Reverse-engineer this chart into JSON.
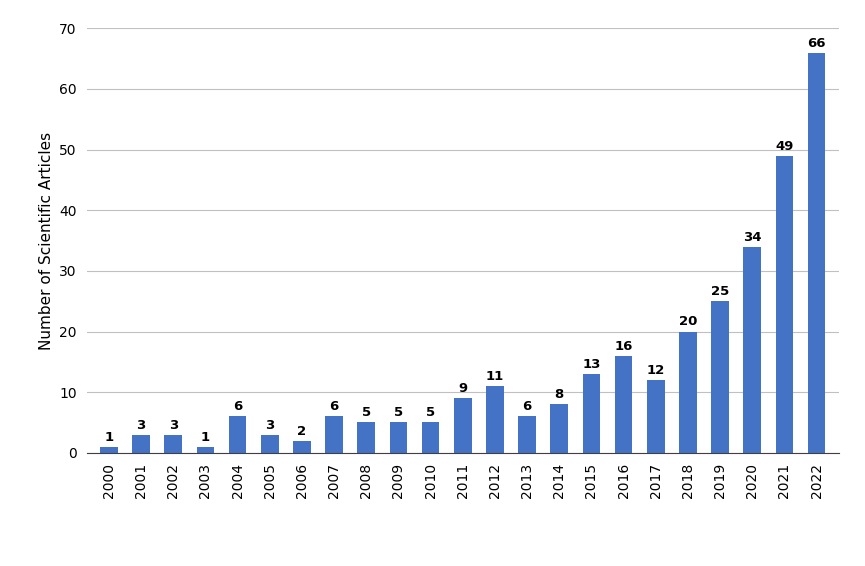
{
  "years": [
    "2000",
    "2001",
    "2002",
    "2003",
    "2004",
    "2005",
    "2006",
    "2007",
    "2008",
    "2009",
    "2010",
    "2011",
    "2012",
    "2013",
    "2014",
    "2015",
    "2016",
    "2017",
    "2018",
    "2019",
    "2020",
    "2021",
    "2022"
  ],
  "values": [
    1,
    3,
    3,
    1,
    6,
    3,
    2,
    6,
    5,
    5,
    5,
    9,
    11,
    6,
    8,
    13,
    16,
    12,
    20,
    25,
    34,
    49,
    66
  ],
  "bar_color": "#4472C4",
  "ylabel": "Number of Scientific Articles",
  "ylim": [
    0,
    70
  ],
  "yticks": [
    0,
    10,
    20,
    30,
    40,
    50,
    60,
    70
  ],
  "background_color": "#ffffff",
  "label_fontsize": 11,
  "tick_fontsize": 10,
  "bar_label_fontsize": 9.5,
  "bar_width": 0.55
}
